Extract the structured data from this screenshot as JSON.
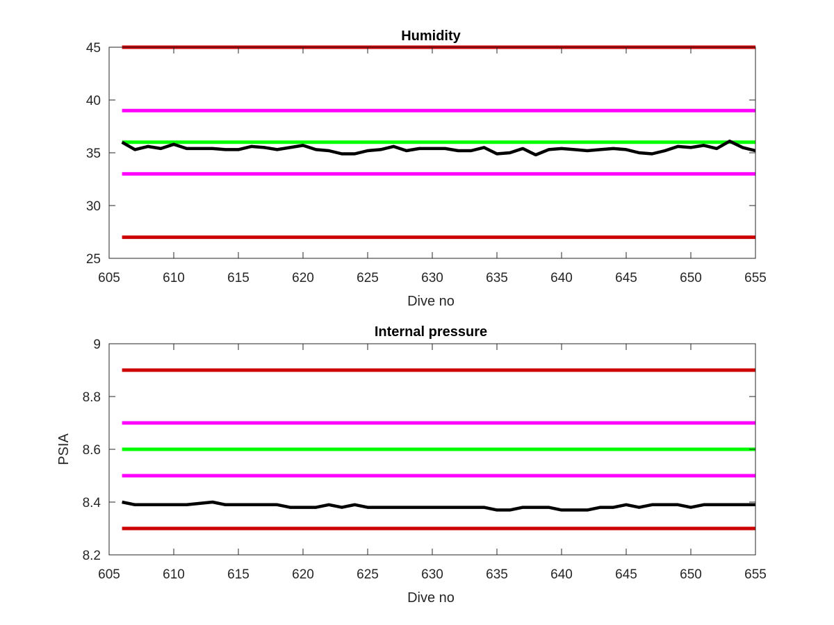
{
  "chart_data": [
    {
      "type": "line",
      "title": "Humidity",
      "xlabel": "Dive no",
      "ylabel": "",
      "xlim": [
        605,
        655
      ],
      "ylim": [
        25,
        45
      ],
      "xticks": [
        605,
        610,
        615,
        620,
        625,
        630,
        635,
        640,
        645,
        650,
        655
      ],
      "xtick_labels": [
        "605",
        "610",
        "615",
        "620",
        "625",
        "630",
        "635",
        "640",
        "645",
        "650",
        "655"
      ],
      "yticks": [
        25,
        30,
        35,
        40,
        45
      ],
      "ytick_labels": [
        "25",
        "30",
        "35",
        "40",
        "45"
      ],
      "grid": false,
      "reference_lines": [
        {
          "y": 45,
          "color": "#cc0000"
        },
        {
          "y": 39,
          "color": "#ff00ff"
        },
        {
          "y": 36,
          "color": "#00ff00"
        },
        {
          "y": 33,
          "color": "#ff00ff"
        },
        {
          "y": 27,
          "color": "#cc0000"
        }
      ],
      "series": [
        {
          "color": "#000000",
          "x": [
            606,
            607,
            608,
            609,
            610,
            611,
            612,
            613,
            614,
            615,
            616,
            617,
            618,
            619,
            620,
            621,
            622,
            623,
            624,
            625,
            626,
            627,
            628,
            629,
            630,
            631,
            632,
            633,
            634,
            635,
            636,
            637,
            638,
            639,
            640,
            641,
            642,
            643,
            644,
            645,
            646,
            647,
            648,
            649,
            650,
            651,
            652,
            653,
            654,
            655
          ],
          "values": [
            36.0,
            35.3,
            35.6,
            35.4,
            35.8,
            35.4,
            35.4,
            35.4,
            35.3,
            35.3,
            35.6,
            35.5,
            35.3,
            35.5,
            35.7,
            35.3,
            35.2,
            34.9,
            34.9,
            35.2,
            35.3,
            35.6,
            35.2,
            35.4,
            35.4,
            35.4,
            35.2,
            35.2,
            35.5,
            34.9,
            35.0,
            35.4,
            34.8,
            35.3,
            35.4,
            35.3,
            35.2,
            35.3,
            35.4,
            35.3,
            35.0,
            34.9,
            35.2,
            35.6,
            35.5,
            35.7,
            35.4,
            36.1,
            35.5,
            35.2
          ]
        }
      ]
    },
    {
      "type": "line",
      "title": "Internal pressure",
      "xlabel": "Dive no",
      "ylabel": "PSIA",
      "xlim": [
        605,
        655
      ],
      "ylim": [
        8.2,
        9.0
      ],
      "xticks": [
        605,
        610,
        615,
        620,
        625,
        630,
        635,
        640,
        645,
        650,
        655
      ],
      "xtick_labels": [
        "605",
        "610",
        "615",
        "620",
        "625",
        "630",
        "635",
        "640",
        "645",
        "650",
        "655"
      ],
      "yticks": [
        8.2,
        8.4,
        8.6,
        8.8,
        9.0
      ],
      "ytick_labels": [
        "8.2",
        "8.4",
        "8.6",
        "8.8",
        "9"
      ],
      "grid": false,
      "reference_lines": [
        {
          "y": 8.9,
          "color": "#cc0000"
        },
        {
          "y": 8.7,
          "color": "#ff00ff"
        },
        {
          "y": 8.6,
          "color": "#00ff00"
        },
        {
          "y": 8.5,
          "color": "#ff00ff"
        },
        {
          "y": 8.3,
          "color": "#cc0000"
        }
      ],
      "series": [
        {
          "color": "#000000",
          "x": [
            606,
            607,
            608,
            609,
            610,
            611,
            612,
            613,
            614,
            615,
            616,
            617,
            618,
            619,
            620,
            621,
            622,
            623,
            624,
            625,
            626,
            627,
            628,
            629,
            630,
            631,
            632,
            633,
            634,
            635,
            636,
            637,
            638,
            639,
            640,
            641,
            642,
            643,
            644,
            645,
            646,
            647,
            648,
            649,
            650,
            651,
            652,
            653,
            654,
            655
          ],
          "values": [
            8.4,
            8.39,
            8.39,
            8.39,
            8.39,
            8.39,
            8.395,
            8.4,
            8.39,
            8.39,
            8.39,
            8.39,
            8.39,
            8.38,
            8.38,
            8.38,
            8.39,
            8.38,
            8.39,
            8.38,
            8.38,
            8.38,
            8.38,
            8.38,
            8.38,
            8.38,
            8.38,
            8.38,
            8.38,
            8.37,
            8.37,
            8.38,
            8.38,
            8.38,
            8.37,
            8.37,
            8.37,
            8.38,
            8.38,
            8.39,
            8.38,
            8.39,
            8.39,
            8.39,
            8.38,
            8.39,
            8.39,
            8.39,
            8.39,
            8.39
          ]
        }
      ]
    }
  ]
}
